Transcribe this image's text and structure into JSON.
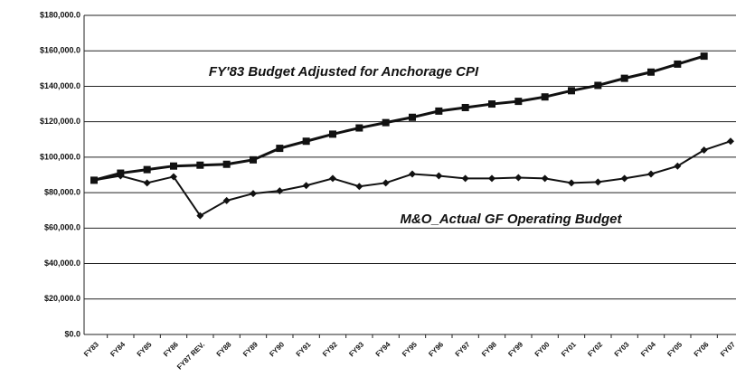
{
  "chart_data": {
    "type": "line",
    "categories": [
      "FY83",
      "FY84",
      "FY85",
      "FY86",
      "FY87 REV.",
      "FY88",
      "FY89",
      "FY90",
      "FY91",
      "FY92",
      "FY93",
      "FY94",
      "FY95",
      "FY96",
      "FY97",
      "FY98",
      "FY99",
      "FY00",
      "FY01",
      "FY02",
      "FY03",
      "FY04",
      "FY05",
      "FY06",
      "FY07"
    ],
    "series": [
      {
        "name": "FY'83 Budget Adjusted for Anchorage CPI",
        "color": "#111111",
        "marker": "square",
        "values": [
          87000,
          91000,
          93000,
          95000,
          95500,
          96000,
          98500,
          105000,
          109000,
          113000,
          116500,
          119500,
          122500,
          126000,
          128000,
          130000,
          131500,
          134000,
          137500,
          140500,
          144500,
          148000,
          152500,
          157000,
          null
        ]
      },
      {
        "name": "M&O_Actual GF Operating Budget",
        "color": "#111111",
        "marker": "diamond",
        "values": [
          87000,
          89500,
          85500,
          89000,
          67000,
          75500,
          79500,
          81000,
          84000,
          88000,
          83500,
          85500,
          90500,
          89500,
          88000,
          88000,
          88500,
          88000,
          85500,
          86000,
          88000,
          90500,
          95000,
          104000,
          109000
        ]
      }
    ],
    "ylim": [
      0,
      180000
    ],
    "yticks": [
      {
        "value": 0,
        "label": "$0.0"
      },
      {
        "value": 20000,
        "label": "$20,000.0"
      },
      {
        "value": 40000,
        "label": "$40,000.0"
      },
      {
        "value": 60000,
        "label": "$60,000.0"
      },
      {
        "value": 80000,
        "label": "$80,000.0"
      },
      {
        "value": 100000,
        "label": "$100,000.0"
      },
      {
        "value": 120000,
        "label": "$120,000.0"
      },
      {
        "value": 140000,
        "label": "$140,000.0"
      },
      {
        "value": 160000,
        "label": "$160,000.0"
      },
      {
        "value": 180000,
        "label": "$180,000.0"
      }
    ],
    "grid": true
  }
}
